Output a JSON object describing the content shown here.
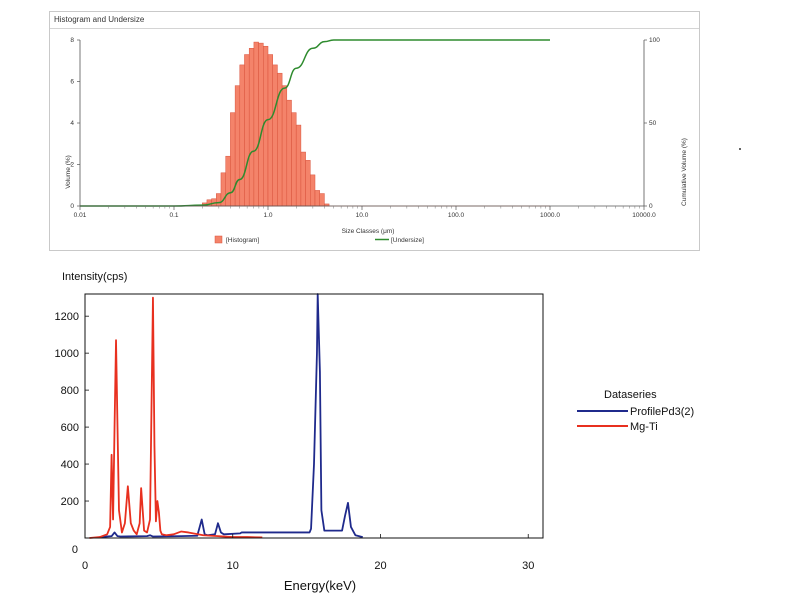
{
  "chart_data": [
    {
      "type": "bar",
      "title": "Histogram and Undersize",
      "xlabel": "Size Classes (μm)",
      "ylabel": "Volume (%)",
      "y2label": "Cumulative Volume (%)",
      "xscale": "log",
      "xlim": [
        0.01,
        10000
      ],
      "ylim": [
        0,
        8
      ],
      "y2lim": [
        0,
        100
      ],
      "x_ticks": [
        "0.01",
        "0.1",
        "1.0",
        "10.0",
        "100.0",
        "1000.0",
        "10000.0"
      ],
      "y_ticks": [
        "0",
        "2",
        "4",
        "6",
        "8"
      ],
      "y2_ticks": [
        "0",
        "50",
        "100"
      ],
      "legend": [
        "[Histogram]",
        "[Undersize]"
      ],
      "legend_position": "bottom",
      "colors": {
        "histogram": "#f4836a",
        "histogram_edge": "#d9533c",
        "undersize": "#2e8b2e"
      },
      "series": [
        {
          "name": "[Histogram]",
          "type": "bar",
          "bins_left": [
            0.2,
            0.224,
            0.251,
            0.282,
            0.316,
            0.355,
            0.398,
            0.447,
            0.501,
            0.562,
            0.631,
            0.708,
            0.794,
            0.891,
            1.0,
            1.122,
            1.259,
            1.413,
            1.585,
            1.778,
            1.995,
            2.239,
            2.512,
            2.818,
            3.162,
            3.548,
            3.981
          ],
          "bins_right": [
            0.224,
            0.251,
            0.282,
            0.316,
            0.355,
            0.398,
            0.447,
            0.501,
            0.562,
            0.631,
            0.708,
            0.794,
            0.891,
            1.0,
            1.122,
            1.259,
            1.413,
            1.585,
            1.778,
            1.995,
            2.239,
            2.512,
            2.818,
            3.162,
            3.548,
            3.981,
            4.467
          ],
          "values": [
            0.15,
            0.3,
            0.35,
            0.6,
            1.6,
            2.4,
            4.5,
            5.8,
            6.8,
            7.3,
            7.6,
            7.9,
            7.85,
            7.7,
            7.3,
            6.8,
            6.4,
            5.8,
            5.1,
            4.5,
            3.9,
            2.6,
            2.2,
            1.5,
            0.75,
            0.6,
            0.1
          ]
        },
        {
          "name": "[Undersize]",
          "type": "line",
          "axis": "y2",
          "x": [
            0.01,
            0.1,
            0.2,
            0.3,
            0.4,
            0.5,
            0.7,
            1.0,
            1.5,
            2.0,
            3.0,
            4.0,
            5.0,
            10,
            100,
            1000
          ],
          "y": [
            0,
            0,
            0.5,
            2,
            8,
            16,
            33,
            52,
            71,
            83,
            95,
            99,
            100,
            100,
            100,
            100
          ]
        }
      ]
    },
    {
      "type": "line",
      "title": "",
      "ylabel": "Intensity(cps)",
      "xlabel": "Energy(keV)",
      "xlim": [
        0,
        31
      ],
      "ylim": [
        0,
        1320
      ],
      "x_ticks": [
        0,
        10,
        20,
        30
      ],
      "y_ticks": [
        200,
        400,
        600,
        800,
        1000,
        1200
      ],
      "y_origin_label": "0",
      "grid": false,
      "legend_title": "Dataseries",
      "legend_position": "right",
      "colors": {
        "ProfilePd3(2)": "#1f2a8c",
        "Mg-Ti": "#e8301f"
      },
      "series": [
        {
          "name": "ProfilePd3(2)",
          "x": [
            1.0,
            1.8,
            2.0,
            2.2,
            2.4,
            4.2,
            4.4,
            4.6,
            6.5,
            7.6,
            7.9,
            8.1,
            8.3,
            8.8,
            9.0,
            9.2,
            9.4,
            10.5,
            10.6,
            15.2,
            15.3,
            15.5,
            15.7,
            15.75,
            15.9,
            16.0,
            16.2,
            17.4,
            17.6,
            17.8,
            18.0,
            18.3,
            18.8
          ],
          "y": [
            5,
            10,
            30,
            10,
            8,
            10,
            15,
            8,
            10,
            12,
            100,
            20,
            15,
            20,
            80,
            30,
            20,
            25,
            30,
            30,
            50,
            400,
            1000,
            1320,
            900,
            150,
            40,
            40,
            120,
            190,
            60,
            15,
            5
          ]
        },
        {
          "name": "Mg-Ti",
          "x": [
            0.3,
            1.0,
            1.5,
            1.7,
            1.8,
            1.9,
            2.0,
            2.1,
            2.2,
            2.3,
            2.5,
            2.7,
            2.9,
            3.1,
            3.3,
            3.5,
            3.7,
            3.8,
            4.0,
            4.2,
            4.4,
            4.5,
            4.6,
            4.7,
            4.8,
            4.9,
            5.0,
            5.1,
            5.2,
            5.5,
            6.0,
            6.5,
            7.0,
            8.0,
            9.0,
            10.0,
            11.0,
            12.0
          ],
          "y": [
            0,
            5,
            20,
            60,
            450,
            100,
            600,
            1070,
            600,
            150,
            30,
            80,
            280,
            80,
            40,
            20,
            80,
            270,
            40,
            30,
            100,
            700,
            1300,
            500,
            90,
            200,
            140,
            40,
            20,
            15,
            20,
            35,
            30,
            15,
            10,
            5,
            5,
            3
          ]
        }
      ]
    }
  ]
}
